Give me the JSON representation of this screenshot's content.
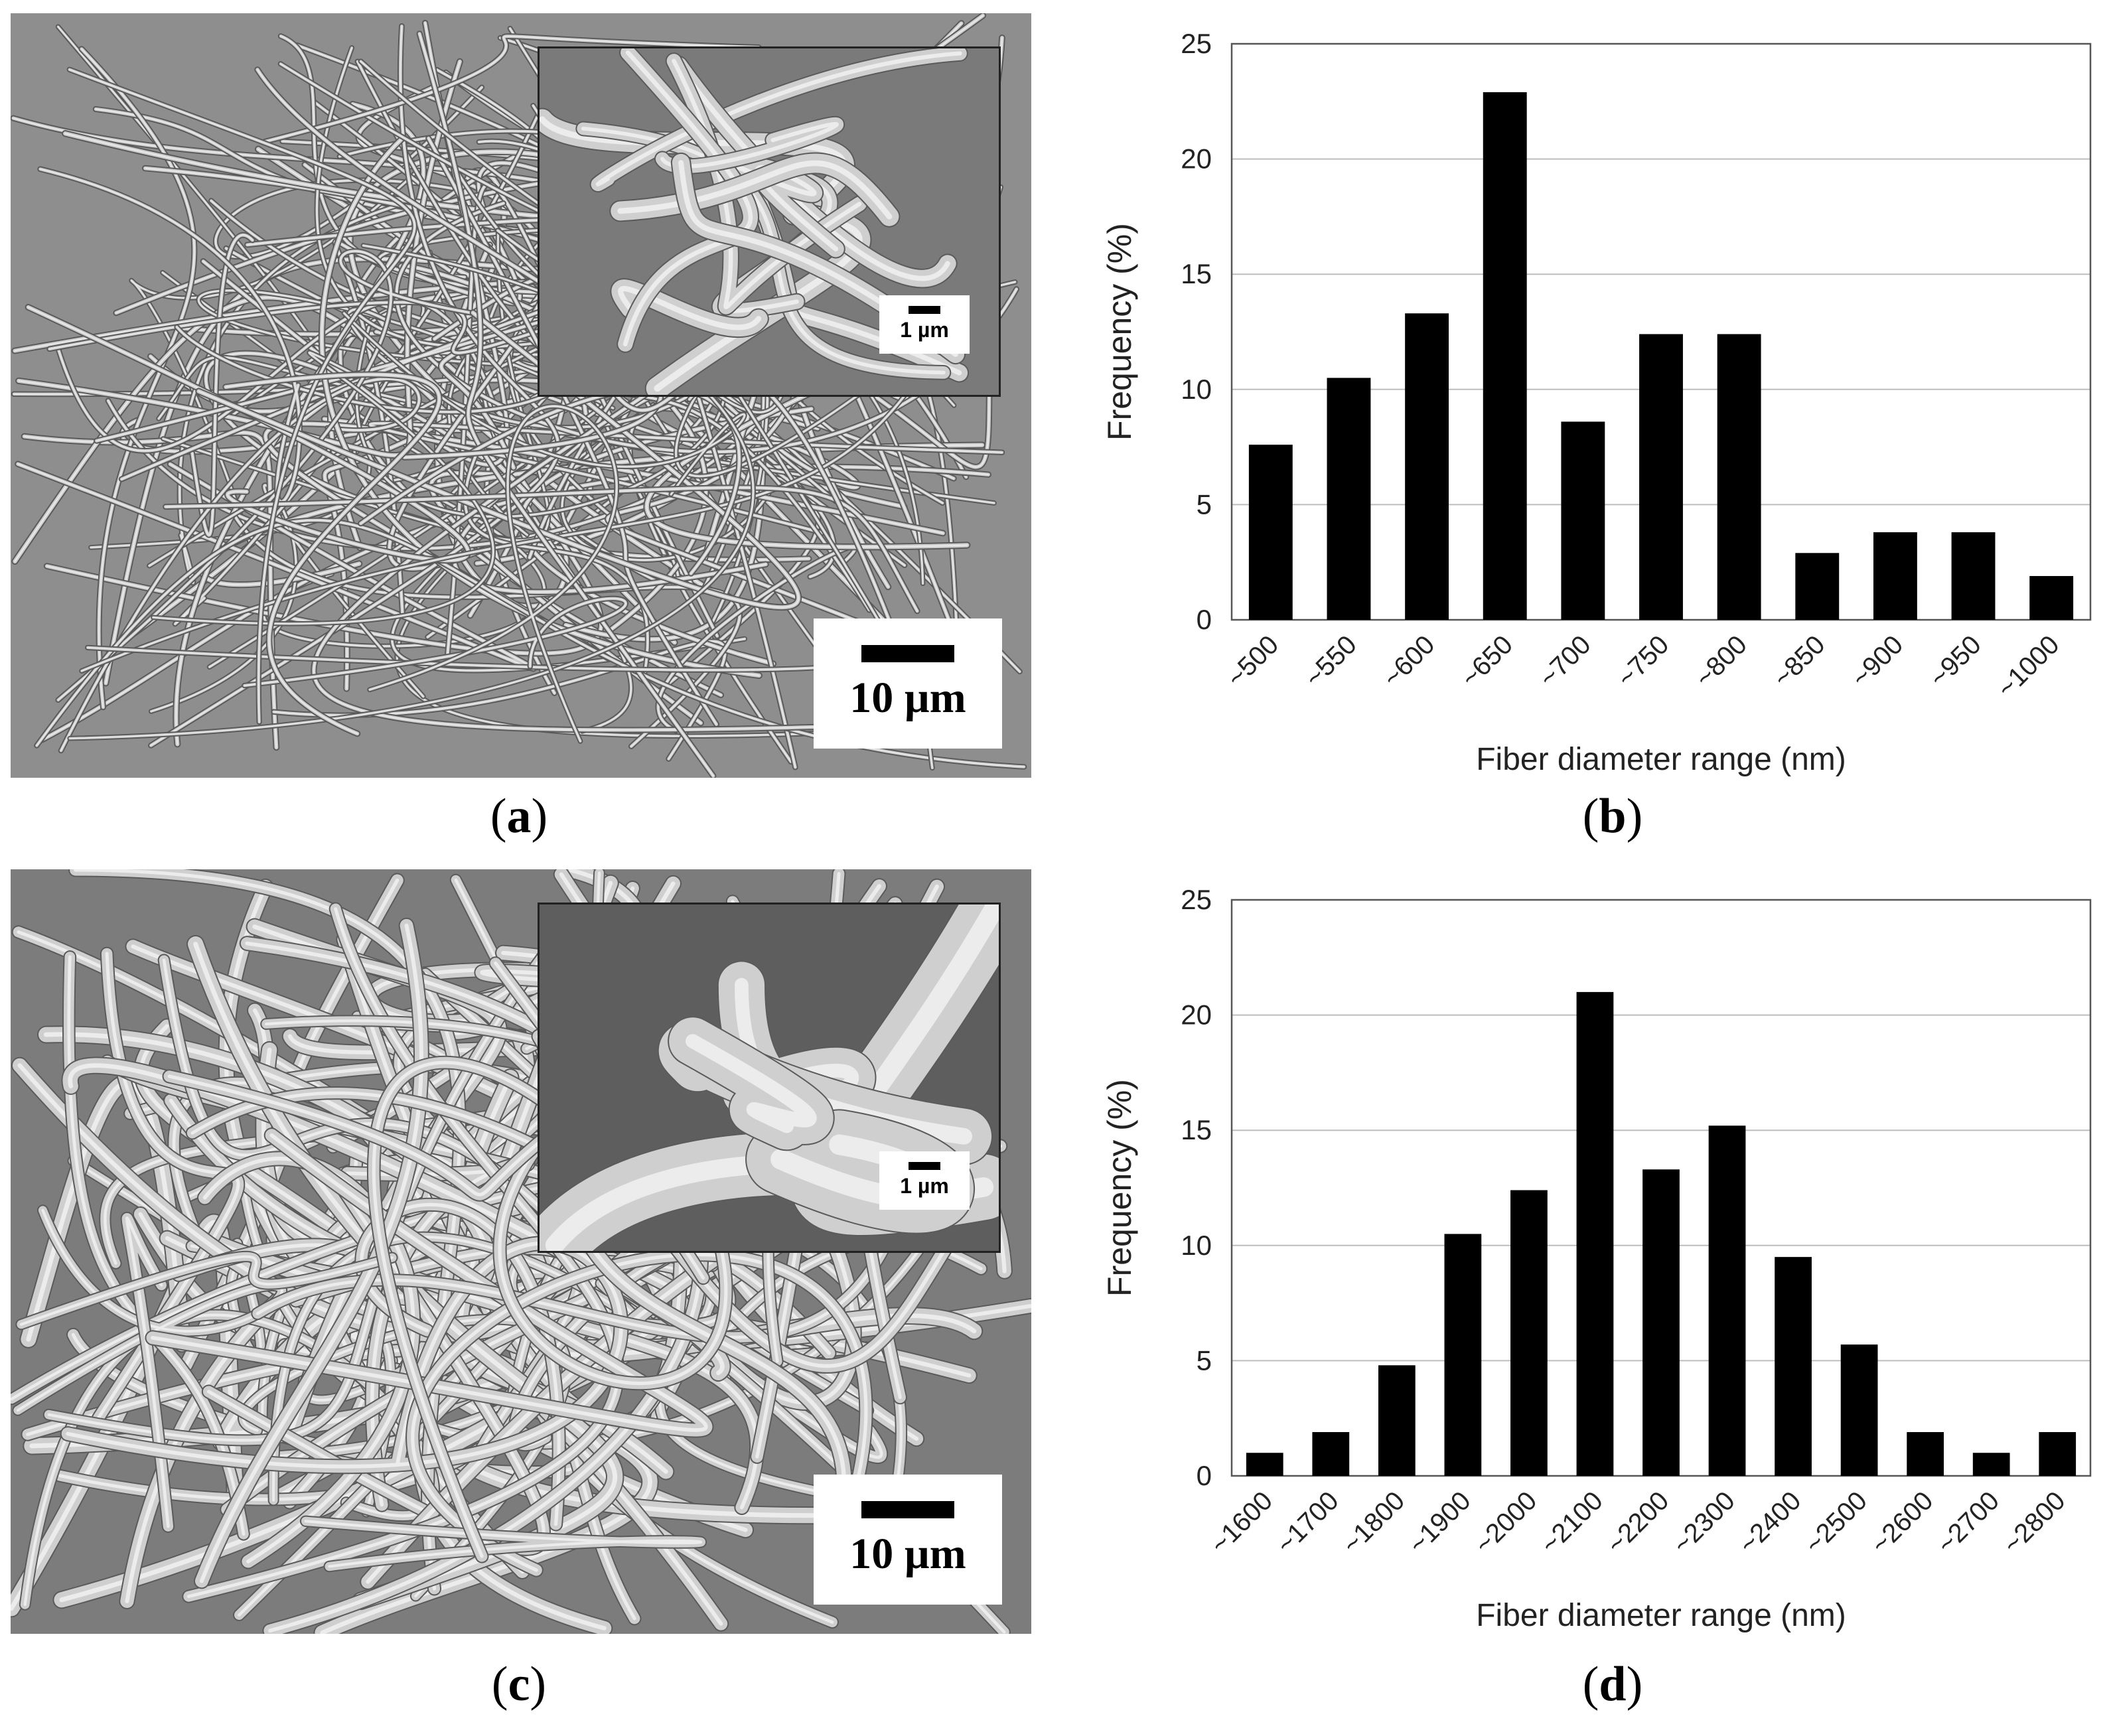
{
  "panels": {
    "a": {
      "label": "a",
      "scale": "10 µm",
      "inset_scale": "1 µm"
    },
    "b": {
      "label": "b"
    },
    "c": {
      "label": "c",
      "scale": "10 µm",
      "inset_scale": "1 µm"
    },
    "d": {
      "label": "d"
    }
  },
  "chart_data": [
    {
      "type": "bar",
      "categories": [
        "~500",
        "~550",
        "~600",
        "~650",
        "~700",
        "~750",
        "~800",
        "~850",
        "~900",
        "~950",
        "~1000"
      ],
      "values": [
        7.6,
        10.5,
        13.3,
        22.9,
        8.6,
        12.4,
        12.4,
        2.9,
        3.8,
        3.8,
        1.9
      ],
      "xlabel": "Fiber diameter range (nm)",
      "ylabel": "Frequency (%)",
      "ylim": [
        0,
        25
      ],
      "yticks": [
        0,
        5,
        10,
        15,
        20,
        25
      ],
      "grid": true,
      "bar_color": "#000000"
    },
    {
      "type": "bar",
      "categories": [
        "~1600",
        "~1700",
        "~1800",
        "~1900",
        "~2000",
        "~2100",
        "~2200",
        "~2300",
        "~2400",
        "~2500",
        "~2600",
        "~2700",
        "~2800"
      ],
      "values": [
        1.0,
        1.9,
        4.8,
        10.5,
        12.4,
        21.0,
        13.3,
        15.2,
        9.5,
        5.7,
        1.9,
        1.0,
        1.9
      ],
      "xlabel": "Fiber diameter range (nm)",
      "ylabel": "Frequency (%)",
      "ylim": [
        0,
        25
      ],
      "yticks": [
        0,
        5,
        10,
        15,
        20,
        25
      ],
      "grid": true,
      "bar_color": "#000000"
    }
  ]
}
